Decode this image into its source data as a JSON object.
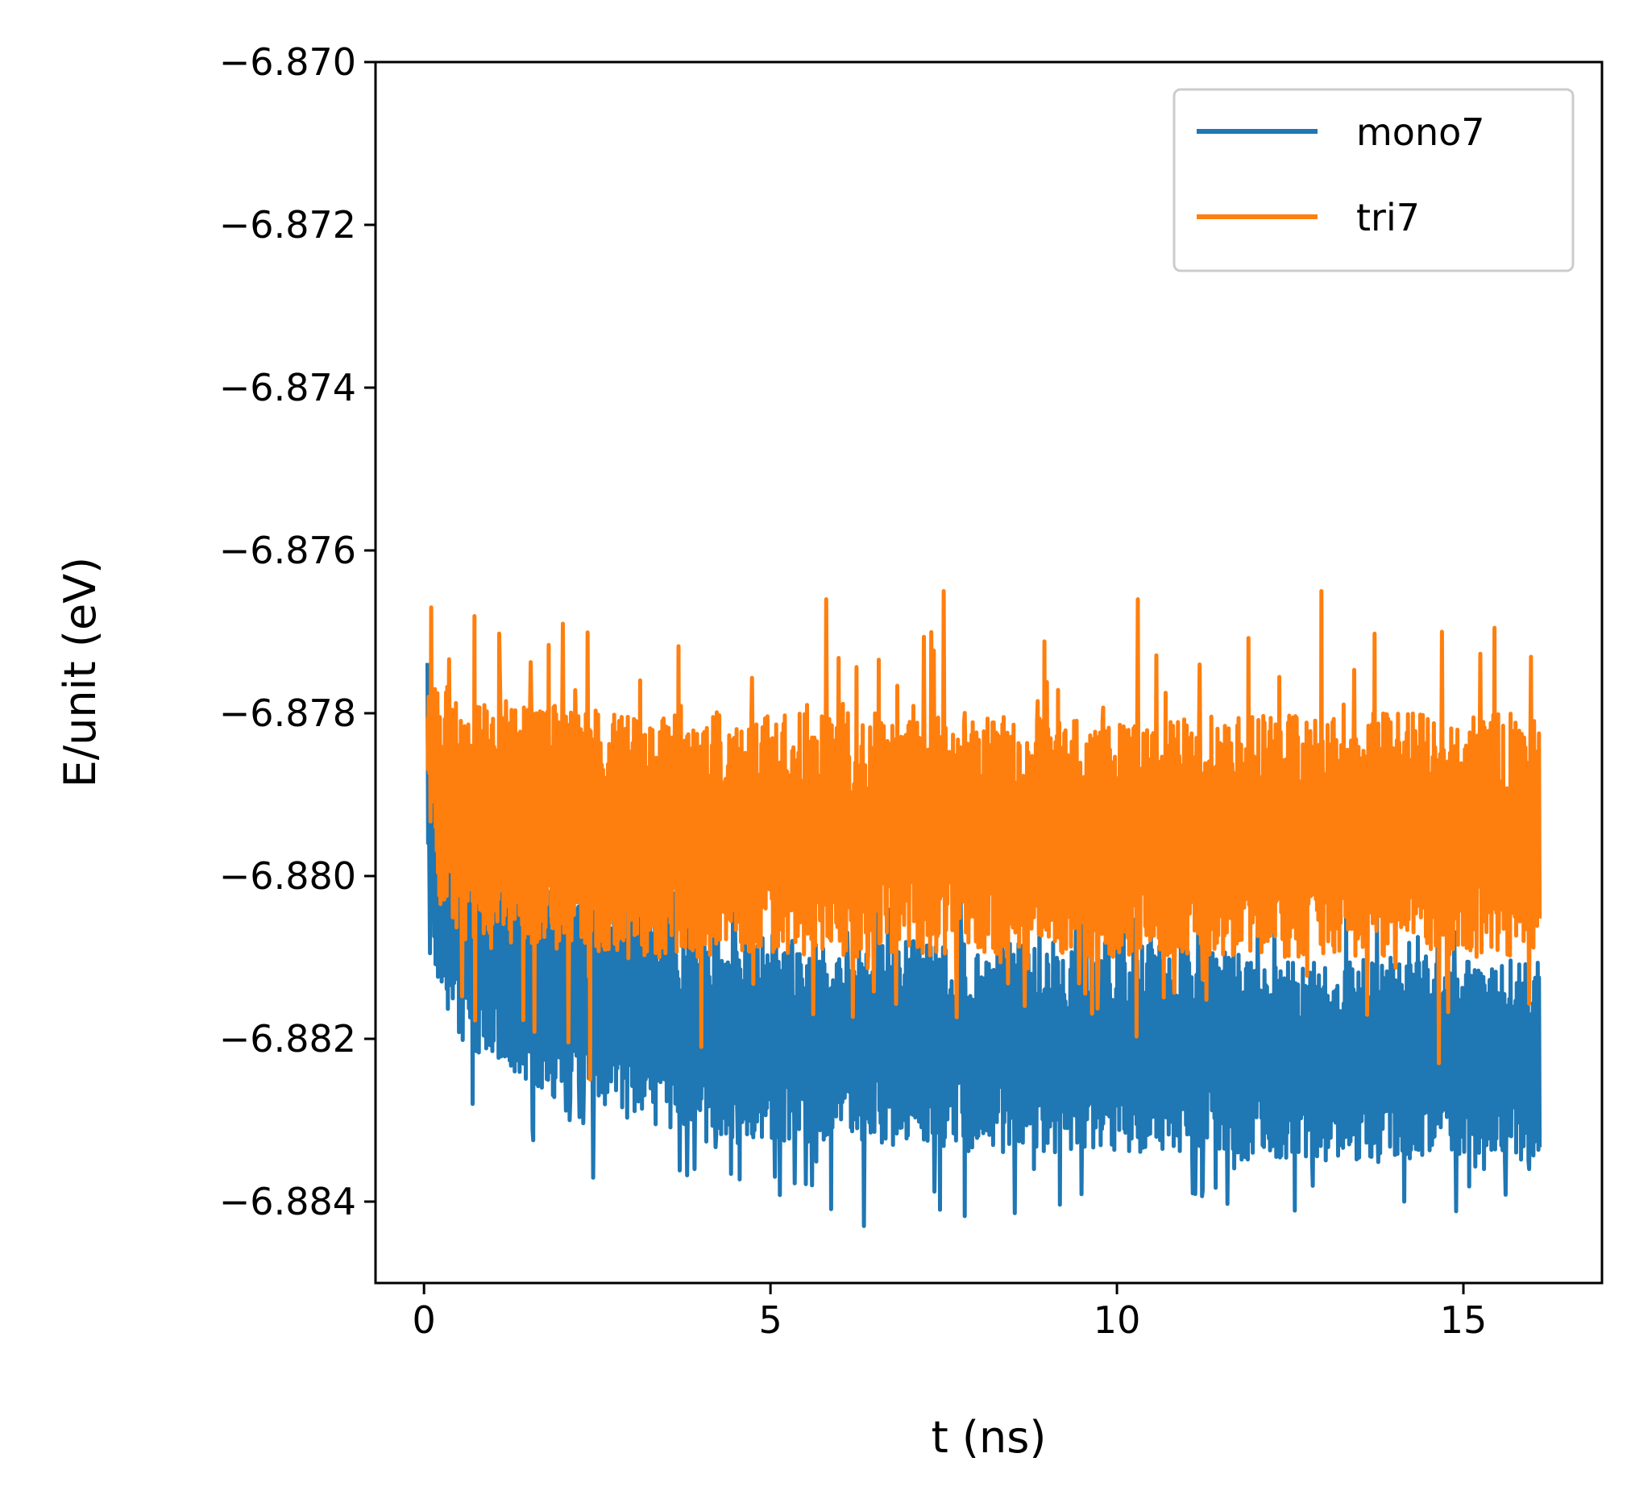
{
  "chart_data": {
    "type": "line",
    "title": "",
    "xlabel": "t (ns)",
    "ylabel": "E/unit (eV)",
    "xlim": [
      -0.7,
      17.0
    ],
    "ylim": [
      -6.885,
      -6.87
    ],
    "xticks": [
      0,
      5,
      10,
      15
    ],
    "xtick_labels": [
      "0",
      "5",
      "10",
      "15"
    ],
    "yticks": [
      -6.87,
      -6.872,
      -6.874,
      -6.876,
      -6.878,
      -6.88,
      -6.882,
      -6.884
    ],
    "ytick_labels": [
      "−6.870",
      "−6.872",
      "−6.874",
      "−6.876",
      "−6.878",
      "−6.880",
      "−6.882",
      "−6.884"
    ],
    "grid": false,
    "legend_position": "top-right",
    "x_range": [
      0.05,
      16.1
    ],
    "series": [
      {
        "name": "mono7",
        "color": "#1f77b4",
        "envelope": {
          "t": [
            0.05,
            0.2,
            0.5,
            1.0,
            2.0,
            3.0,
            4.0,
            6.0,
            8.0,
            10.0,
            12.0,
            14.0,
            16.1
          ],
          "upper": [
            -6.8778,
            -6.879,
            -6.8793,
            -6.8796,
            -6.88,
            -6.8803,
            -6.8806,
            -6.8808,
            -6.8808,
            -6.8808,
            -6.881,
            -6.881,
            -6.881
          ],
          "lower": [
            -6.88,
            -6.8815,
            -6.882,
            -6.8823,
            -6.8828,
            -6.883,
            -6.8832,
            -6.8833,
            -6.8834,
            -6.8834,
            -6.8835,
            -6.8835,
            -6.8835
          ]
        },
        "extremes": [
          {
            "t": 0.7,
            "value": -6.8828
          },
          {
            "t": 2.1,
            "value": -6.883
          },
          {
            "t": 3.9,
            "value": -6.8836
          },
          {
            "t": 5.6,
            "value": -6.8838
          },
          {
            "t": 6.35,
            "value": -6.8843
          },
          {
            "t": 7.45,
            "value": -6.8841
          },
          {
            "t": 8.8,
            "value": -6.8836
          },
          {
            "t": 14.15,
            "value": -6.884
          },
          {
            "t": 15.3,
            "value": -6.8836
          },
          {
            "t": 15.95,
            "value": -6.8836
          }
        ]
      },
      {
        "name": "tri7",
        "color": "#ff7f0e",
        "envelope": {
          "t": [
            0.05,
            0.2,
            0.5,
            1.0,
            2.0,
            3.0,
            4.0,
            6.0,
            8.0,
            10.0,
            12.0,
            14.0,
            16.1
          ],
          "upper": [
            -6.8776,
            -6.8777,
            -6.8778,
            -6.8779,
            -6.8779,
            -6.878,
            -6.878,
            -6.878,
            -6.878,
            -6.8781,
            -6.878,
            -6.878,
            -6.878
          ],
          "lower": [
            -6.879,
            -6.8803,
            -6.8808,
            -6.8809,
            -6.881,
            -6.881,
            -6.881,
            -6.881,
            -6.881,
            -6.881,
            -6.881,
            -6.881,
            -6.881
          ]
        },
        "extremes": [
          {
            "t": 0.1,
            "value": -6.8767
          },
          {
            "t": 2.0,
            "value": -6.8769
          },
          {
            "t": 5.8,
            "value": -6.8766
          },
          {
            "t": 7.5,
            "value": -6.8765
          },
          {
            "t": 10.3,
            "value": -6.8766
          },
          {
            "t": 12.95,
            "value": -6.8765
          },
          {
            "t": 2.4,
            "value": -6.8825
          },
          {
            "t": 14.65,
            "value": -6.8823
          },
          {
            "t": 4.0,
            "value": -6.8821
          }
        ]
      }
    ]
  }
}
